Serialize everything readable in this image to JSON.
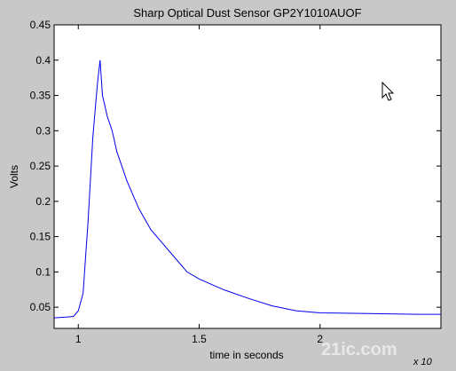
{
  "chart_data": {
    "type": "line",
    "title": "Sharp Optical Dust Sensor GP2Y1010AUOF",
    "xlabel": "time in seconds",
    "ylabel": "Volts",
    "x_exponent_label": "x 10",
    "xlim": [
      0.9,
      2.5
    ],
    "ylim": [
      0.02,
      0.45
    ],
    "xticks": [
      1,
      1.5,
      2
    ],
    "xtick_labels": [
      "1",
      "1.5",
      "2"
    ],
    "yticks": [
      0.05,
      0.1,
      0.15,
      0.2,
      0.25,
      0.3,
      0.35,
      0.4,
      0.45
    ],
    "ytick_labels": [
      "0.05",
      "0.1",
      "0.15",
      "0.2",
      "0.25",
      "0.3",
      "0.35",
      "0.4",
      "0.45"
    ],
    "grid": false,
    "series": [
      {
        "color": "#0000ee",
        "x": [
          0.9,
          0.95,
          0.98,
          1.0,
          1.02,
          1.03,
          1.04,
          1.05,
          1.06,
          1.07,
          1.08,
          1.09,
          1.1,
          1.12,
          1.14,
          1.16,
          1.18,
          1.2,
          1.25,
          1.3,
          1.35,
          1.4,
          1.45,
          1.5,
          1.6,
          1.7,
          1.8,
          1.9,
          2.0,
          2.2,
          2.4,
          2.5
        ],
        "values": [
          0.035,
          0.036,
          0.037,
          0.045,
          0.07,
          0.12,
          0.17,
          0.23,
          0.29,
          0.33,
          0.37,
          0.4,
          0.35,
          0.32,
          0.3,
          0.27,
          0.25,
          0.23,
          0.19,
          0.16,
          0.14,
          0.12,
          0.1,
          0.09,
          0.075,
          0.063,
          0.052,
          0.045,
          0.042,
          0.041,
          0.04,
          0.04
        ]
      }
    ]
  },
  "watermark": {
    "text": "21ic.com"
  },
  "cursor_icon": "arrow-cursor-icon"
}
